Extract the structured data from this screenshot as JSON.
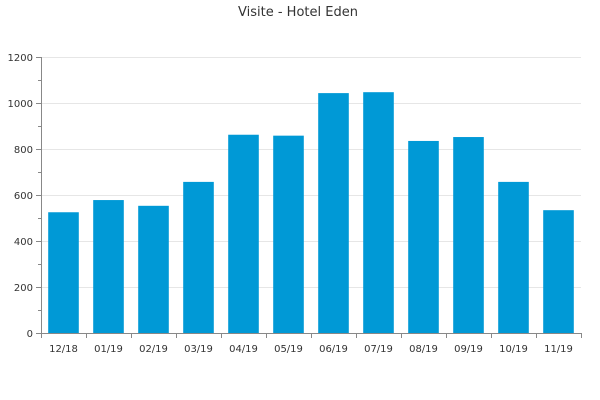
{
  "chart_data": {
    "type": "bar",
    "title": "Visite - Hotel Eden",
    "categories": [
      "12/18",
      "01/19",
      "02/19",
      "03/19",
      "04/19",
      "05/19",
      "06/19",
      "07/19",
      "08/19",
      "09/19",
      "10/19",
      "11/19"
    ],
    "values": [
      525,
      578,
      553,
      657,
      862,
      858,
      1043,
      1047,
      835,
      852,
      657,
      534
    ],
    "xlabel": "",
    "ylabel": "",
    "ylim": [
      0,
      1200
    ],
    "yticks": [
      0,
      200,
      400,
      600,
      800,
      1000,
      1200
    ],
    "grid": true,
    "legend": "none",
    "bar_color": "#0099d6"
  }
}
